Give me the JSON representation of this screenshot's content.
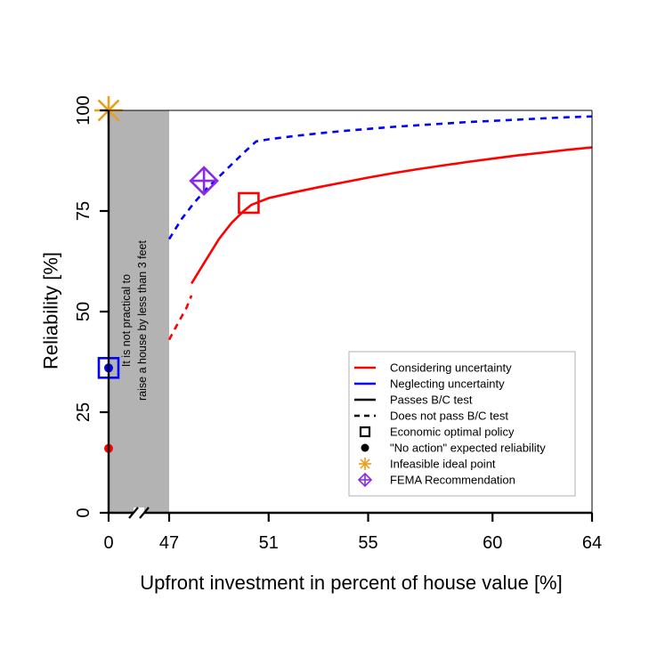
{
  "chart_data": {
    "type": "line",
    "title": "",
    "xlabel": "Upfront investment in percent of house value [%]",
    "ylabel": "Reliability [%]",
    "ylim": [
      0,
      100
    ],
    "x_axis": {
      "note": "broken axis between 0 and 47",
      "tick_labels": [
        "0",
        "47",
        "51",
        "55",
        "60",
        "64"
      ],
      "upper_segment_xlim": [
        47,
        64
      ]
    },
    "y_ticks": [
      "0",
      "25",
      "50",
      "75",
      "100"
    ],
    "shaded_region": {
      "x": [
        0,
        47
      ],
      "annotation_lines": [
        "It is not practical to",
        "raise a house by less than 3 feet"
      ]
    },
    "series": [
      {
        "name": "Considering uncertainty",
        "color": "#ff0000",
        "not_passing_bc": {
          "x": [
            47,
            47.3,
            47.7,
            47.9
          ],
          "y": [
            43,
            46.5,
            51,
            54
          ]
        },
        "passing_bc": {
          "x": [
            47.9,
            48.5,
            49,
            49.5,
            50,
            50.3,
            51,
            52,
            53,
            54,
            55,
            56,
            57,
            58,
            59,
            60,
            61,
            62,
            63,
            64
          ],
          "y": [
            57,
            63,
            68,
            72,
            75,
            76.5,
            78.2,
            79.6,
            80.9,
            82.1,
            83.3,
            84.4,
            85.4,
            86.3,
            87.2,
            88,
            88.8,
            89.5,
            90.2,
            90.8
          ]
        },
        "markers": {
          "economic_optimal": {
            "x": 50.2,
            "y": 77
          },
          "no_action": {
            "x": 0,
            "y": 16
          }
        }
      },
      {
        "name": "Neglecting uncertainty",
        "color": "#0000ff",
        "not_passing_bc": {
          "x": [
            47,
            47.5,
            48,
            48.5,
            49,
            49.5,
            50,
            50.5,
            51,
            52,
            53,
            54,
            55,
            56,
            57,
            58,
            59,
            60,
            61,
            62,
            63,
            64
          ],
          "y": [
            68,
            73,
            77,
            80.5,
            83.5,
            86.5,
            89.5,
            92.3,
            92.8,
            93.6,
            94.3,
            94.9,
            95.4,
            95.9,
            96.3,
            96.7,
            97.1,
            97.4,
            97.7,
            98,
            98.3,
            98.5
          ]
        },
        "markers": {
          "economic_optimal": {
            "x": 0,
            "y": 36
          },
          "no_action": {
            "x": 0,
            "y": 36
          }
        }
      }
    ],
    "special_points": {
      "ideal_point": {
        "x": 0,
        "y": 100,
        "color": "#e8a020"
      },
      "fema_recommendation": {
        "x": 48.4,
        "y": 82.5,
        "color": "#8a2be2"
      }
    },
    "legend": {
      "position": "bottom-right",
      "entries": [
        {
          "label": "Considering uncertainty",
          "kind": "line",
          "color": "#ff0000"
        },
        {
          "label": "Neglecting uncertainty",
          "kind": "line",
          "color": "#0000ff"
        },
        {
          "label": "Passes B/C test",
          "kind": "line",
          "color": "#000000"
        },
        {
          "label": "Does not pass B/C test",
          "kind": "dash",
          "color": "#000000"
        },
        {
          "label": "Economic optimal policy",
          "kind": "square",
          "color": "#000000"
        },
        {
          "label": "\"No action\" expected reliability",
          "kind": "dot",
          "color": "#000000"
        },
        {
          "label": "Infeasible ideal point",
          "kind": "star",
          "color": "#e8a020"
        },
        {
          "label": "FEMA Recommendation",
          "kind": "diamond",
          "color": "#8a2be2"
        }
      ]
    }
  }
}
